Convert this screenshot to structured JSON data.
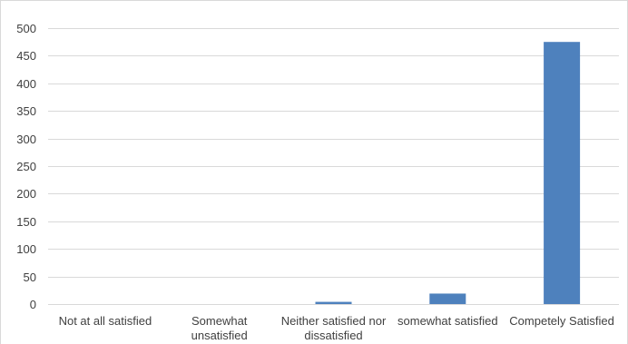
{
  "chart_data": {
    "type": "bar",
    "title": "",
    "xlabel": "",
    "ylabel": "",
    "categories": [
      [
        "Not at all satisfied"
      ],
      [
        "Somewhat",
        "unsatisfied"
      ],
      [
        "Neither satisfied nor",
        "dissatisfied"
      ],
      [
        "somewhat satisfied"
      ],
      [
        "Competely Satisfied"
      ]
    ],
    "values": [
      0,
      0,
      4,
      19,
      475
    ],
    "ylim": [
      0,
      500
    ],
    "yticks": [
      0,
      50,
      100,
      150,
      200,
      250,
      300,
      350,
      400,
      450,
      500
    ],
    "grid": true,
    "legend": "none",
    "colors": {
      "bar": "#4e81bd",
      "grid": "#d9d9d9",
      "axis": "#d9d9d9",
      "text": "#404040"
    }
  }
}
